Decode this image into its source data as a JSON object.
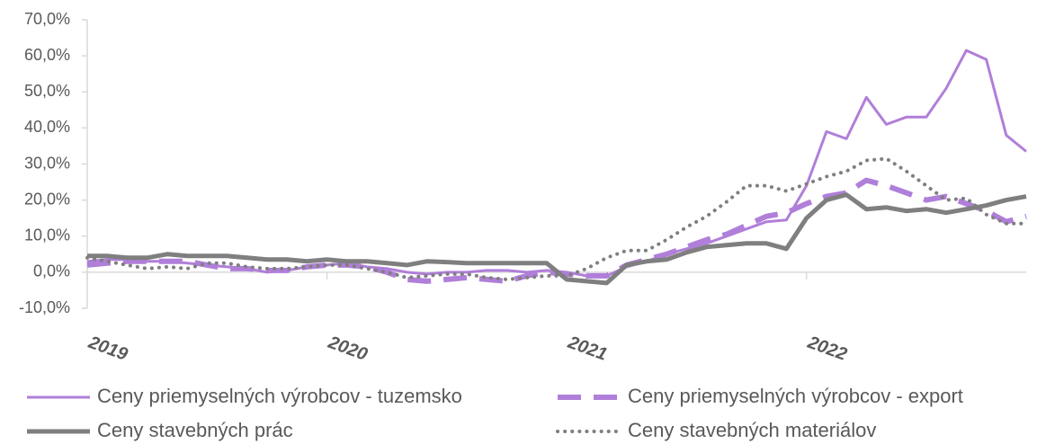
{
  "chart_data": {
    "type": "line",
    "categories": [
      "2019",
      null,
      null,
      null,
      null,
      null,
      null,
      null,
      null,
      null,
      null,
      null,
      "2020",
      null,
      null,
      null,
      null,
      null,
      null,
      null,
      null,
      null,
      null,
      null,
      "2021",
      null,
      null,
      null,
      null,
      null,
      null,
      null,
      null,
      null,
      null,
      null,
      "2022",
      null,
      null,
      null,
      null,
      null,
      null,
      null,
      null,
      null,
      null,
      null
    ],
    "ylim": [
      -10,
      70
    ],
    "yticks": [
      {
        "value": -10,
        "label": "-10,0%"
      },
      {
        "value": 0,
        "label": "0,0%"
      },
      {
        "value": 10,
        "label": "10,0%"
      },
      {
        "value": 20,
        "label": "20,0%"
      },
      {
        "value": 30,
        "label": "30,0%"
      },
      {
        "value": 40,
        "label": "40,0%"
      },
      {
        "value": 50,
        "label": "50,0%"
      },
      {
        "value": 60,
        "label": "60,0%"
      },
      {
        "value": 70,
        "label": "70,0%"
      }
    ],
    "series": [
      {
        "name": "Ceny priemyselných výrobcov - tuzemsko",
        "color": "#b07fd9",
        "style": "thin",
        "values": [
          3,
          3.5,
          3.5,
          3,
          3,
          2.5,
          2,
          1.5,
          1,
          0,
          0.5,
          1.5,
          2,
          2.5,
          1.5,
          1,
          0,
          -0.5,
          0,
          0,
          0.5,
          0.5,
          0,
          0.5,
          0,
          -1,
          -1,
          1.5,
          3,
          5,
          6.5,
          8,
          10,
          12,
          14,
          14.5,
          24,
          39,
          37,
          48.5,
          41,
          43,
          43,
          51,
          61.5,
          59,
          38,
          33.5
        ]
      },
      {
        "name": "Ceny priemyselných výrobcov - export",
        "color": "#b07fd9",
        "style": "dashed",
        "values": [
          2,
          2.5,
          3,
          3,
          3,
          3,
          2,
          1,
          1,
          0.5,
          0.5,
          1.5,
          2,
          2,
          1.5,
          0,
          -2,
          -2.5,
          -2,
          -1.5,
          -2,
          -2.5,
          -1,
          0,
          -0.5,
          -1,
          -1,
          2,
          3.5,
          5,
          7,
          9,
          10.5,
          13,
          15.5,
          16.5,
          19,
          21,
          22,
          25.5,
          24,
          22,
          20,
          21,
          19,
          17,
          14,
          15.5
        ]
      },
      {
        "name": "Ceny stavebných prác",
        "color": "#7f7f7f",
        "style": "thick",
        "values": [
          4.5,
          4.5,
          4,
          4,
          5,
          4.5,
          4.5,
          4.5,
          4,
          3.5,
          3.5,
          3,
          3.5,
          3,
          3,
          2.5,
          2,
          3,
          2.8,
          2.5,
          2.5,
          2.5,
          2.5,
          2.5,
          -2,
          -2.5,
          -3,
          2,
          3,
          3.5,
          5.5,
          7,
          7.5,
          8,
          8,
          6.5,
          15,
          20,
          21.5,
          17.5,
          18,
          17,
          17.5,
          16.5,
          17.5,
          18.5,
          20,
          21
        ]
      },
      {
        "name": "Ceny stavebných materiálov",
        "color": "#7f7f7f",
        "style": "dotted",
        "values": [
          4,
          3,
          2,
          1,
          1.5,
          1,
          2.5,
          2.5,
          1.5,
          1,
          1,
          1.5,
          2,
          2,
          1,
          0,
          -1.5,
          -1,
          -0.5,
          -0.5,
          -1.5,
          -2,
          -1.5,
          -1,
          -1,
          1,
          4,
          6,
          6,
          9,
          12.5,
          15.5,
          19.5,
          24,
          24,
          22.5,
          24.5,
          26.5,
          28,
          31,
          31.5,
          28,
          24,
          20,
          20.5,
          16,
          13.5,
          13.5
        ]
      }
    ]
  }
}
